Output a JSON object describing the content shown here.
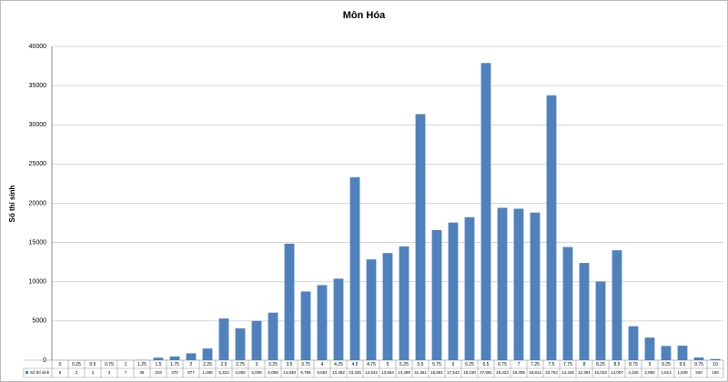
{
  "chart_data": {
    "type": "bar",
    "title": "Môn Hóa",
    "y_label": "Số thí sinh",
    "categories": [
      "0",
      "0.25",
      "0.5",
      "0.75",
      "1",
      "1.25",
      "1.5",
      "1.75",
      "2",
      "2.25",
      "2.5",
      "2.75",
      "3",
      "3.25",
      "3.5",
      "3.75",
      "4",
      "4.25",
      "4.5",
      "4.75",
      "5",
      "5.25",
      "5.5",
      "5.75",
      "6",
      "6.25",
      "6.5",
      "6.75",
      "7",
      "7.25",
      "7.5",
      "7.75",
      "8",
      "8.25",
      "8.5",
      "8.75",
      "9",
      "9.25",
      "9.5",
      "9.75",
      "10"
    ],
    "series": [
      {
        "name": "Số thí sinh",
        "color": "#4f81bd",
        "values": [
          6,
          2,
          2,
          3,
          7,
          36,
          319,
          470,
          877,
          1488,
          5310,
          4050,
          5008,
          6059,
          14848,
          8756,
          9564,
          10392,
          23325,
          12842,
          13654,
          14499,
          31361,
          16581,
          17542,
          18230,
          37881,
          19423,
          19305,
          18814,
          33762,
          14426,
          12391,
          10033,
          14007,
          4326,
          2880,
          1813,
          1849,
          340,
          150
        ],
        "value_labels": [
          "6",
          "2",
          "2",
          "3",
          "7",
          "36",
          "319",
          "470",
          "877",
          "1,488",
          "5,310",
          "4,050",
          "5,008",
          "6,059",
          "14,848",
          "8,756",
          "9,564",
          "10,392",
          "23,325",
          "12,842",
          "13,654",
          "14,499",
          "31,361",
          "16,581",
          "17,542",
          "18,230",
          "37,881",
          "19,423",
          "19,305",
          "18,814",
          "33,762",
          "14,426",
          "12,391",
          "10,033",
          "14,007",
          "4,326",
          "2,880",
          "1,813",
          "1,849",
          "340",
          "150"
        ]
      }
    ],
    "ylim": [
      0,
      40000
    ],
    "yticks": [
      0,
      5000,
      10000,
      15000,
      20000,
      25000,
      30000,
      35000,
      40000
    ],
    "grid": true
  }
}
